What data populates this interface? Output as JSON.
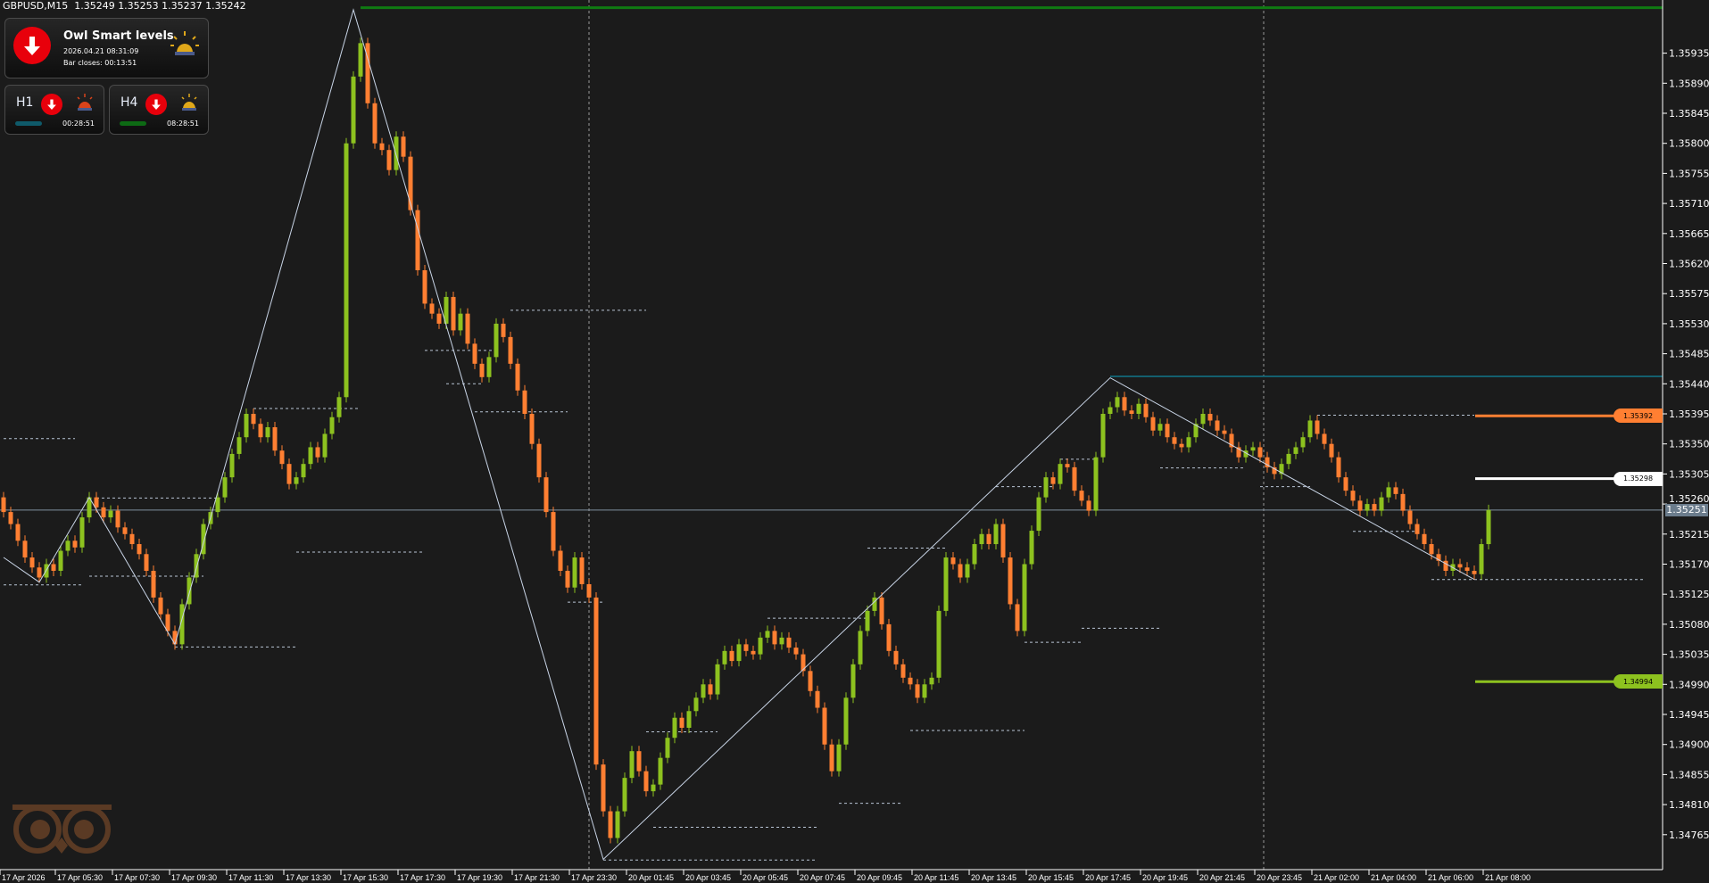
{
  "header": {
    "symbol": "GBPUSD,M15",
    "ohlc": "1.35249 1.35253 1.35237 1.35242"
  },
  "widget": {
    "title": "Owl Smart levels",
    "datetime": "2026.04.21 08:31:09",
    "bar_closes": "Bar closes: 00:13:51",
    "signal": "down",
    "timeframes": [
      {
        "label": "H1",
        "signal": "down",
        "alarm_color": "#d9431a",
        "bar_color": "#0f5a6a",
        "timer": "00:28:51"
      },
      {
        "label": "H4",
        "signal": "down",
        "alarm_color": "#e0a81a",
        "bar_color": "#0d6a14",
        "timer": "08:28:51"
      }
    ]
  },
  "colors": {
    "background": "#1b1b1b",
    "bull": "#8dc21f",
    "bear": "#ff7f32",
    "zigzag": "#c8d4e6",
    "levels_dashed": "#b8c4d4"
  },
  "chart_data": {
    "type": "candlestick",
    "symbol": "GBPUSD",
    "timeframe": "M15",
    "first_open": 1.3527,
    "closes": [
      1.35248,
      1.3523,
      1.35205,
      1.3518,
      1.35165,
      1.3515,
      1.3517,
      1.3516,
      1.3519,
      1.35205,
      1.35195,
      1.3524,
      1.3527,
      1.35255,
      1.3524,
      1.3525,
      1.35225,
      1.35215,
      1.352,
      1.35185,
      1.3516,
      1.3512,
      1.35095,
      1.3507,
      1.3505,
      1.3511,
      1.3515,
      1.35185,
      1.3523,
      1.35248,
      1.3527,
      1.353,
      1.35335,
      1.3536,
      1.35395,
      1.3538,
      1.3536,
      1.35375,
      1.3534,
      1.3532,
      1.3529,
      1.353,
      1.3532,
      1.35345,
      1.3533,
      1.35365,
      1.3539,
      1.3542,
      1.358,
      1.359,
      1.3595,
      1.3586,
      1.358,
      1.3579,
      1.3576,
      1.3581,
      1.3578,
      1.357,
      1.3561,
      1.3556,
      1.35545,
      1.3553,
      1.3557,
      1.3552,
      1.35545,
      1.355,
      1.3547,
      1.3545,
      1.3548,
      1.3553,
      1.3551,
      1.3547,
      1.3543,
      1.35395,
      1.3535,
      1.353,
      1.35248,
      1.3519,
      1.3516,
      1.35135,
      1.3518,
      1.3514,
      1.3512,
      1.3487,
      1.348,
      1.3476,
      1.348,
      1.3485,
      1.3489,
      1.3486,
      1.3483,
      1.3484,
      1.3488,
      1.3491,
      1.3494,
      1.34925,
      1.3495,
      1.3497,
      1.3499,
      1.34975,
      1.3502,
      1.3504,
      1.35025,
      1.3505,
      1.3504,
      1.35035,
      1.3506,
      1.3507,
      1.3505,
      1.3506,
      1.35045,
      1.35035,
      1.3501,
      1.3498,
      1.34955,
      1.349,
      1.3486,
      1.349,
      1.3497,
      1.3502,
      1.3507,
      1.351,
      1.3512,
      1.3508,
      1.3504,
      1.3502,
      1.35,
      1.3499,
      1.3497,
      1.3499,
      1.35,
      1.351,
      1.3518,
      1.3517,
      1.3515,
      1.3517,
      1.352,
      1.35215,
      1.352,
      1.3523,
      1.3518,
      1.3511,
      1.3507,
      1.3517,
      1.3522,
      1.3527,
      1.353,
      1.3529,
      1.3532,
      1.35315,
      1.3528,
      1.35265,
      1.3525,
      1.3533,
      1.35395,
      1.35405,
      1.3542,
      1.354,
      1.35395,
      1.3541,
      1.3539,
      1.3537,
      1.3538,
      1.3536,
      1.3535,
      1.35345,
      1.3536,
      1.3538,
      1.35395,
      1.35385,
      1.3537,
      1.35365,
      1.35345,
      1.3533,
      1.3534,
      1.35345,
      1.3533,
      1.35315,
      1.35305,
      1.3532,
      1.35335,
      1.35345,
      1.3536,
      1.35385,
      1.35365,
      1.3535,
      1.3533,
      1.353,
      1.3528,
      1.35265,
      1.3525,
      1.3526,
      1.3525,
      1.3527,
      1.35285,
      1.35275,
      1.3525,
      1.3523,
      1.35215,
      1.352,
      1.35185,
      1.35175,
      1.3516,
      1.3517,
      1.35165,
      1.3516,
      1.35155,
      1.352,
      1.35251
    ],
    "zigzag": [
      [
        0,
        1.3518
      ],
      [
        5,
        1.35143
      ],
      [
        12,
        1.3527
      ],
      [
        24,
        1.3505
      ],
      [
        49,
        1.36
      ],
      [
        84,
        1.34728
      ],
      [
        155,
        1.35449
      ],
      [
        206,
        1.35147
      ]
    ],
    "dashed_levels": [
      [
        0,
        10,
        1.35358
      ],
      [
        13,
        30,
        1.35269
      ],
      [
        0,
        11,
        1.35139
      ],
      [
        12,
        28,
        1.35152
      ],
      [
        24,
        41,
        1.35046
      ],
      [
        35,
        50,
        1.35403
      ],
      [
        41,
        59,
        1.35188
      ],
      [
        71,
        90,
        1.3555
      ],
      [
        66,
        79,
        1.35398
      ],
      [
        59,
        69,
        1.3549
      ],
      [
        62,
        67,
        1.3544
      ],
      [
        79,
        84,
        1.35113
      ],
      [
        84,
        114,
        1.34727
      ],
      [
        91,
        114,
        1.34776
      ],
      [
        90,
        100,
        1.34919
      ],
      [
        107,
        121,
        1.35089
      ],
      [
        117,
        126,
        1.34812
      ],
      [
        121,
        132,
        1.35194
      ],
      [
        127,
        143,
        1.34921
      ],
      [
        143,
        151,
        1.35053
      ],
      [
        151,
        162,
        1.35074
      ],
      [
        139,
        147,
        1.35286
      ],
      [
        148,
        153,
        1.35327
      ],
      [
        162,
        174,
        1.35314
      ],
      [
        176,
        183,
        1.35286
      ],
      [
        189,
        198,
        1.35219
      ],
      [
        184,
        206,
        1.35393
      ],
      [
        200,
        230,
        1.35147
      ]
    ],
    "top_level": {
      "price": 1.36003,
      "start_bar": 50,
      "color": "#0f7a12"
    },
    "resistance_level": {
      "price": 1.35451,
      "start_bar": 155,
      "color": "#135f6e"
    },
    "target_levels": [
      {
        "label": "1.35392",
        "price": 1.35392,
        "color": "#ff7f32",
        "text_color": "#000000"
      },
      {
        "label": "1.35298",
        "price": 1.35298,
        "color": "#ffffff",
        "text_color": "#000000"
      },
      {
        "label": "1.34994",
        "price": 1.34994,
        "color": "#8dc21f",
        "text_color": "#000000"
      }
    ],
    "current_price": {
      "label": "1.35251",
      "price": 1.35251
    },
    "period_separators_bars": [
      82,
      176.5
    ],
    "y_ticks": [
      "1.35935",
      "1.35890",
      "1.35845",
      "1.35800",
      "1.35755",
      "1.35710",
      "1.35665",
      "1.35620",
      "1.35575",
      "1.35530",
      "1.35485",
      "1.35440",
      "1.35395",
      "1.35350",
      "1.35305",
      "1.35260",
      "1.35215",
      "1.35170",
      "1.35125",
      "1.35080",
      "1.35035",
      "1.34990",
      "1.34945",
      "1.34900",
      "1.34855",
      "1.34810",
      "1.34765"
    ],
    "x_ticks": [
      "17 Apr 2026",
      "17 Apr 05:30",
      "17 Apr 07:30",
      "17 Apr 09:30",
      "17 Apr 11:30",
      "17 Apr 13:30",
      "17 Apr 15:30",
      "17 Apr 17:30",
      "17 Apr 19:30",
      "17 Apr 21:30",
      "17 Apr 23:30",
      "20 Apr 01:45",
      "20 Apr 03:45",
      "20 Apr 05:45",
      "20 Apr 07:45",
      "20 Apr 09:45",
      "20 Apr 11:45",
      "20 Apr 13:45",
      "20 Apr 15:45",
      "20 Apr 17:45",
      "20 Apr 19:45",
      "20 Apr 21:45",
      "20 Apr 23:45",
      "21 Apr 02:00",
      "21 Apr 04:00",
      "21 Apr 06:00",
      "21 Apr 08:00"
    ]
  }
}
